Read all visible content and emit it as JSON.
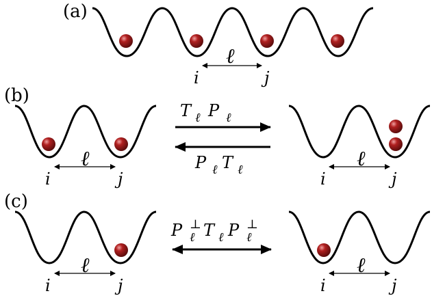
{
  "panels": {
    "a": {
      "label": "(a)"
    },
    "b": {
      "label": "(b)"
    },
    "c": {
      "label": "(c)"
    }
  },
  "sites": {
    "i": "i",
    "j": "j"
  },
  "ell": "ℓ",
  "operators": {
    "forward_b": {
      "T": "T",
      "P": "P",
      "sub": "ℓ"
    },
    "backward_b": {
      "T": "T",
      "P": "P",
      "sub": "ℓ"
    },
    "both_c": {
      "P": "P",
      "T": "T",
      "sub": "ℓ",
      "perp": "⊥"
    }
  },
  "colors": {
    "particle": "#8b1a1a",
    "particle_highlight": "#e88a8a",
    "line": "#000000"
  }
}
